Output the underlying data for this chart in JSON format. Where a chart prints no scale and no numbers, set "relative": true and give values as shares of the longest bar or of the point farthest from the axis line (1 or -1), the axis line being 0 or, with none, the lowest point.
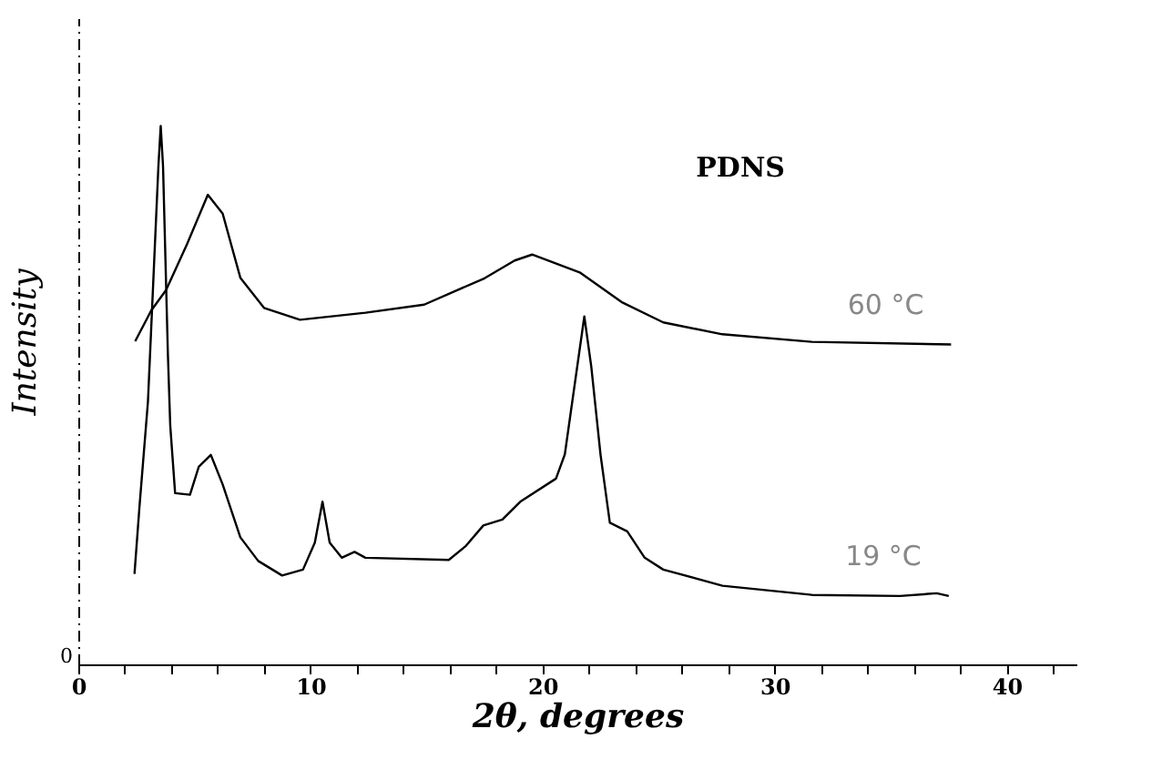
{
  "chart_data": {
    "type": "line",
    "title": "PDNS",
    "xlabel": "2θ, degrees",
    "ylabel": "Intensity",
    "relative": true,
    "xlim": [
      0,
      43
    ],
    "xticks": [
      0,
      {
        "value": 2,
        "label": null
      },
      {
        "value": 4,
        "label": null
      },
      {
        "value": 6,
        "label": null
      },
      {
        "value": 8,
        "label": null
      },
      10,
      {
        "value": 12,
        "label": null
      },
      {
        "value": 14,
        "label": null
      },
      {
        "value": 16,
        "label": null
      },
      {
        "value": 18,
        "label": null
      },
      20,
      {
        "value": 22,
        "label": null
      },
      {
        "value": 24,
        "label": null
      },
      {
        "value": 26,
        "label": null
      },
      {
        "value": 28,
        "label": null
      },
      30,
      {
        "value": 32,
        "label": null
      },
      {
        "value": 34,
        "label": null
      },
      {
        "value": 36,
        "label": null
      },
      {
        "value": 38,
        "label": null
      },
      40,
      {
        "value": 42,
        "label": null
      }
    ],
    "annotations": [
      "0"
    ],
    "grid": false,
    "marker": "none",
    "line_style": "solid",
    "series": [
      {
        "name": "60 °C",
        "color": "#000000",
        "x": [
          2.45,
          3.14,
          3.78,
          4.68,
          5.58,
          6.22,
          6.98,
          8.0,
          9.55,
          12.37,
          14.9,
          17.5,
          18.8,
          19.55,
          21.6,
          23.4,
          25.2,
          27.75,
          31.6,
          37.6
        ],
        "values": [
          0.6,
          0.657,
          0.695,
          0.78,
          0.872,
          0.837,
          0.718,
          0.662,
          0.64,
          0.653,
          0.668,
          0.717,
          0.75,
          0.761,
          0.728,
          0.673,
          0.635,
          0.613,
          0.599,
          0.594
        ]
      },
      {
        "name": "19 °C",
        "color": "#000000",
        "x": [
          2.42,
          2.63,
          3.0,
          3.45,
          3.55,
          3.65,
          3.86,
          3.96,
          4.17,
          4.81,
          5.19,
          5.71,
          6.22,
          6.98,
          7.75,
          8.78,
          9.68,
          10.19,
          10.52,
          10.83,
          11.35,
          11.9,
          12.37,
          15.96,
          16.7,
          17.45,
          18.27,
          19.04,
          20.58,
          20.96,
          21.35,
          21.8,
          22.1,
          22.5,
          22.9,
          23.65,
          24.4,
          25.2,
          27.75,
          31.6,
          35.4,
          36.98,
          37.5
        ],
        "values": [
          0.168,
          0.29,
          0.488,
          0.925,
          1.0,
          0.925,
          0.575,
          0.444,
          0.318,
          0.315,
          0.367,
          0.389,
          0.334,
          0.236,
          0.192,
          0.165,
          0.176,
          0.226,
          0.302,
          0.226,
          0.198,
          0.209,
          0.198,
          0.194,
          0.22,
          0.258,
          0.269,
          0.302,
          0.345,
          0.39,
          0.509,
          0.646,
          0.553,
          0.389,
          0.263,
          0.247,
          0.198,
          0.176,
          0.146,
          0.129,
          0.127,
          0.132,
          0.127
        ]
      }
    ]
  }
}
